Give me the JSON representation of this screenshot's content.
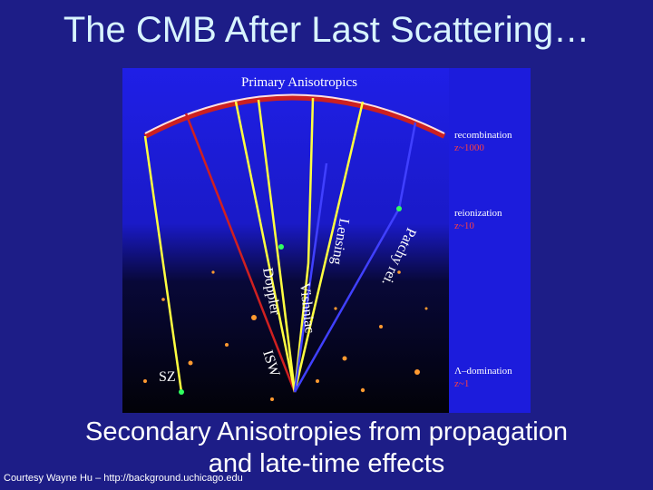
{
  "title": "The CMB After Last Scattering…",
  "figure": {
    "header": "Primary Anisotropics",
    "epochs": [
      {
        "name": "recombination",
        "redshift": "z~1000"
      },
      {
        "name": "reionization",
        "redshift": "z~10"
      },
      {
        "name": "Λ–domination",
        "redshift": "z~1"
      }
    ],
    "effects": [
      "SZ",
      "ISW",
      "Doppler",
      "Vishniac",
      "Lensing",
      "Patchy rei."
    ]
  },
  "subtitle": [
    "Secondary Anisotropies from propagation",
    "and late-time effects"
  ],
  "credit": "Courtesy Wayne Hu – http://background.uchicago.edu"
}
